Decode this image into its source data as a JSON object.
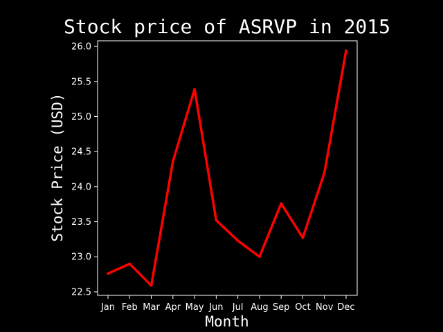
{
  "chart_data": {
    "type": "line",
    "title": "Stock price of ASRVP in 2015",
    "xlabel": "Month",
    "ylabel": "Stock Price (USD)",
    "categories": [
      "Jan",
      "Feb",
      "Mar",
      "Apr",
      "May",
      "Jun",
      "Jul",
      "Aug",
      "Sep",
      "Oct",
      "Nov",
      "Dec"
    ],
    "series": [
      {
        "values": [
          22.76,
          22.9,
          22.59,
          24.36,
          25.39,
          23.52,
          23.23,
          23.0,
          23.76,
          23.27,
          24.2,
          25.94
        ],
        "color": "#ff0000"
      }
    ],
    "ylim": [
      22.45,
      26.08
    ],
    "yticks": [
      22.5,
      23.0,
      23.5,
      24.0,
      24.5,
      25.0,
      25.5,
      26.0
    ],
    "ytick_labels": [
      "22.5",
      "23.0",
      "23.5",
      "24.0",
      "24.5",
      "25.0",
      "25.5",
      "26.0"
    ],
    "grid": false,
    "background": "#000000",
    "foreground": "#ffffff"
  }
}
